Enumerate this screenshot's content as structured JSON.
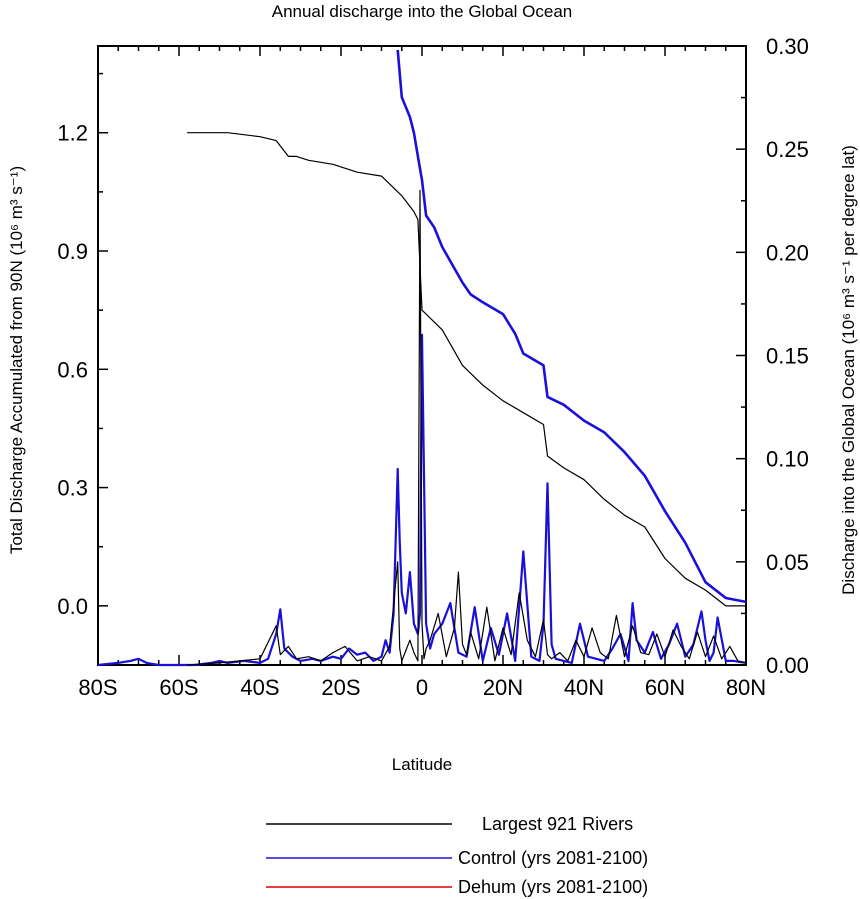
{
  "chart_data": {
    "type": "line",
    "title": "Annual discharge into the Global Ocean",
    "xlabel": "Latitude",
    "ylabel_left": "Total Discharge Accumulated from 90N (10⁶ m³ s⁻¹)",
    "ylabel_right": "Discharge into the Global Ocean (10⁶ m³ s⁻¹ per degree lat)",
    "xlim": [
      -80,
      80
    ],
    "ylim_left": [
      -0.15,
      1.42
    ],
    "ylim_right": [
      0.0,
      0.3
    ],
    "x_ticks": [
      -80,
      -60,
      -40,
      -20,
      0,
      20,
      40,
      60,
      80
    ],
    "x_tick_labels": [
      "80S",
      "60S",
      "40S",
      "20S",
      "0",
      "20N",
      "40N",
      "60N",
      "80N"
    ],
    "left_ticks": [
      0.0,
      0.3,
      0.6,
      0.9,
      1.2
    ],
    "left_tick_labels": [
      "0.0",
      "0.3",
      "0.6",
      "0.9",
      "1.2"
    ],
    "right_ticks": [
      0.0,
      0.05,
      0.1,
      0.15,
      0.2,
      0.25,
      0.3
    ],
    "right_tick_labels": [
      "0.00",
      "0.05",
      "0.10",
      "0.15",
      "0.20",
      "0.25",
      "0.30"
    ],
    "series": [
      {
        "name": "Largest 921 Rivers",
        "color": "#000000",
        "axis": "left",
        "kind": "accumulated",
        "x": [
          -58,
          -48,
          -40,
          -36,
          -33,
          -31,
          -28,
          -22,
          -16,
          -10,
          -5,
          -2,
          -1,
          0,
          1,
          5,
          10,
          15,
          20,
          25,
          30,
          31,
          35,
          40,
          45,
          50,
          55,
          60,
          65,
          70,
          75,
          80
        ],
        "y": [
          1.2,
          1.2,
          1.19,
          1.18,
          1.14,
          1.14,
          1.13,
          1.12,
          1.1,
          1.09,
          1.04,
          1.0,
          0.98,
          0.75,
          0.74,
          0.7,
          0.61,
          0.56,
          0.52,
          0.49,
          0.46,
          0.38,
          0.35,
          0.32,
          0.27,
          0.23,
          0.2,
          0.12,
          0.07,
          0.04,
          0.0,
          0.0
        ]
      },
      {
        "name": "Control (yrs 2081-2100)",
        "color": "#1a10d8",
        "axis": "left",
        "kind": "accumulated",
        "x": [
          -6,
          -5,
          -3,
          -2,
          -1,
          0,
          1,
          3,
          5,
          10,
          12,
          15,
          20,
          23,
          25,
          30,
          31,
          35,
          40,
          45,
          50,
          55,
          60,
          65,
          70,
          75,
          80
        ],
        "y": [
          1.41,
          1.29,
          1.24,
          1.2,
          1.14,
          1.08,
          0.99,
          0.96,
          0.91,
          0.82,
          0.79,
          0.77,
          0.74,
          0.69,
          0.64,
          0.61,
          0.53,
          0.51,
          0.47,
          0.44,
          0.39,
          0.33,
          0.24,
          0.16,
          0.06,
          0.02,
          0.01
        ]
      },
      {
        "name": "Control (yrs 2081-2100)",
        "color": "#1a10d8",
        "axis": "right",
        "kind": "per_degree",
        "x": [
          -80,
          -75,
          -72,
          -70,
          -68,
          -65,
          -62,
          -60,
          -56,
          -52,
          -50,
          -48,
          -44,
          -40,
          -38,
          -36,
          -35,
          -34,
          -32,
          -30,
          -27,
          -25,
          -22,
          -20,
          -18,
          -16,
          -14,
          -12,
          -10,
          -9,
          -8,
          -7,
          -6,
          -5.5,
          -5,
          -4,
          -3,
          -2,
          -1,
          -0.5,
          0,
          1,
          2,
          3,
          5,
          7,
          9,
          11,
          13,
          15,
          17,
          19,
          21,
          23,
          25,
          27,
          29,
          30,
          31,
          32,
          33,
          35,
          37,
          39,
          41,
          43,
          45,
          47,
          49,
          51,
          52,
          53,
          55,
          57,
          59,
          61,
          63,
          65,
          67,
          69,
          70,
          71,
          72,
          73,
          75,
          77,
          80
        ],
        "y": [
          0.0,
          0.001,
          0.002,
          0.003,
          0.001,
          0.0,
          0.0,
          0.0,
          0.0,
          0.001,
          0.002,
          0.001,
          0.002,
          0.001,
          0.003,
          0.015,
          0.027,
          0.008,
          0.004,
          0.002,
          0.003,
          0.002,
          0.004,
          0.003,
          0.008,
          0.005,
          0.006,
          0.002,
          0.004,
          0.012,
          0.006,
          0.025,
          0.095,
          0.06,
          0.035,
          0.025,
          0.045,
          0.02,
          0.015,
          0.025,
          0.16,
          0.02,
          0.008,
          0.015,
          0.02,
          0.03,
          0.006,
          0.004,
          0.028,
          0.002,
          0.018,
          0.005,
          0.025,
          0.002,
          0.055,
          0.004,
          0.002,
          0.02,
          0.088,
          0.01,
          0.003,
          0.002,
          0.001,
          0.02,
          0.004,
          0.003,
          0.002,
          0.008,
          0.015,
          0.002,
          0.03,
          0.012,
          0.006,
          0.016,
          0.003,
          0.01,
          0.02,
          0.004,
          0.01,
          0.026,
          0.012,
          0.002,
          0.006,
          0.023,
          0.002,
          0.002,
          0.001
        ]
      },
      {
        "name": "Largest 921 Rivers",
        "color": "#000000",
        "axis": "right",
        "kind": "per_degree",
        "x": [
          -58,
          -50,
          -45,
          -40,
          -36,
          -35,
          -33,
          -31,
          -28,
          -25,
          -22,
          -19,
          -16,
          -13,
          -10,
          -8,
          -6,
          -5.5,
          -5,
          -3,
          -2,
          -1,
          -0.5,
          0,
          0.5,
          1,
          2,
          4,
          6,
          8,
          9,
          10,
          11,
          12,
          14,
          16,
          18,
          20,
          22,
          24,
          26,
          28,
          30,
          31,
          32,
          34,
          36,
          38,
          40,
          42,
          44,
          46,
          48,
          50,
          52,
          54,
          56,
          58,
          60,
          62,
          64,
          66,
          68,
          70,
          72,
          74,
          76,
          78,
          80
        ],
        "y": [
          0.0,
          0.001,
          0.002,
          0.003,
          0.019,
          0.005,
          0.009,
          0.003,
          0.004,
          0.002,
          0.006,
          0.009,
          0.002,
          0.004,
          0.002,
          0.009,
          0.05,
          0.008,
          0.002,
          0.012,
          0.006,
          0.002,
          0.23,
          0.02,
          0.003,
          0.008,
          0.012,
          0.025,
          0.004,
          0.018,
          0.045,
          0.01,
          0.005,
          0.016,
          0.003,
          0.028,
          0.002,
          0.018,
          0.005,
          0.035,
          0.012,
          0.004,
          0.022,
          0.005,
          0.003,
          0.006,
          0.002,
          0.012,
          0.004,
          0.018,
          0.006,
          0.003,
          0.024,
          0.004,
          0.019,
          0.006,
          0.005,
          0.015,
          0.004,
          0.017,
          0.009,
          0.003,
          0.016,
          0.004,
          0.014,
          0.003,
          0.009,
          0.002,
          0.001
        ]
      },
      {
        "name": "Dehum (yrs 2081-2100)",
        "color": "#e00000",
        "axis": "left",
        "kind": "legend_only",
        "x": [],
        "y": []
      }
    ],
    "legend": [
      {
        "label": "Largest 921 Rivers",
        "color": "#000000"
      },
      {
        "label": "Control (yrs 2081-2100)",
        "color": "#1a10d8"
      },
      {
        "label": "Dehum (yrs 2081-2100)",
        "color": "#e00000"
      }
    ]
  }
}
